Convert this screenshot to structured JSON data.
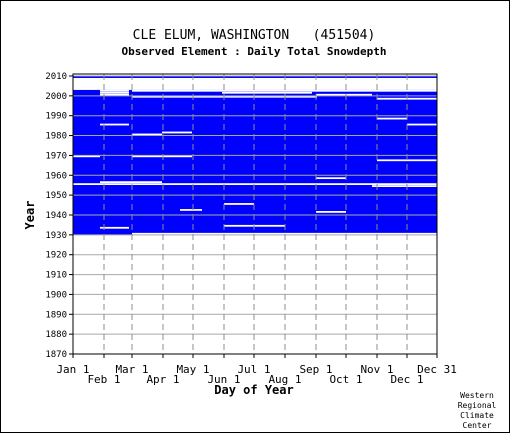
{
  "title": "CLE ELUM, WASHINGTON   (451504)",
  "subtitle": "Observed Element : Daily Total Snowdepth",
  "credit": [
    "Western",
    "Regional",
    "Climate",
    "Center"
  ],
  "chart_data": {
    "type": "heatmap",
    "title": "CLE ELUM, WASHINGTON   (451504)",
    "subtitle": "Observed Element : Daily Total Snowdepth",
    "xlabel": "Day of Year",
    "ylabel": "Year",
    "xlim": [
      1,
      365
    ],
    "ylim": [
      1870,
      2011
    ],
    "grid": true,
    "y_ticks": [
      1870,
      1880,
      1890,
      1900,
      1910,
      1920,
      1930,
      1940,
      1950,
      1960,
      1970,
      1980,
      1990,
      2000,
      2010
    ],
    "x_ticks_upper": [
      {
        "label": "Jan 1",
        "day": 1
      },
      {
        "label": "Mar 1",
        "day": 60
      },
      {
        "label": "May 1",
        "day": 121
      },
      {
        "label": "Jul 1",
        "day": 182
      },
      {
        "label": "Sep 1",
        "day": 244
      },
      {
        "label": "Nov 1",
        "day": 305
      },
      {
        "label": "Dec 31",
        "day": 365
      }
    ],
    "x_ticks_lower": [
      {
        "label": "Feb 1",
        "day": 32
      },
      {
        "label": "Apr 1",
        "day": 91
      },
      {
        "label": "Jun 1",
        "day": 152
      },
      {
        "label": "Aug 1",
        "day": 213
      },
      {
        "label": "Oct 1",
        "day": 274
      },
      {
        "label": "Dec 1",
        "day": 335
      }
    ],
    "fill_color": "#0000ff",
    "missing_color": "#ffffff",
    "data_blocks": [
      {
        "year_start": 1930,
        "year_end": 2002,
        "day_start": 1,
        "day_end": 365,
        "status": "observed"
      },
      {
        "year_start": 2009,
        "year_end": 2010,
        "day_start": 1,
        "day_end": 365,
        "status": "observed"
      }
    ],
    "missing_segments": [
      {
        "year": 2010,
        "day_start": 1,
        "day_end": 365
      },
      {
        "year": 2008,
        "day_start": 230,
        "day_end": 365
      },
      {
        "year": 2003,
        "day_start": 1,
        "day_end": 365
      },
      {
        "year": 2002,
        "day_start": 28,
        "day_end": 57
      },
      {
        "year": 2002,
        "day_start": 60,
        "day_end": 365
      },
      {
        "year": 2001,
        "day_start": 28,
        "day_end": 57
      },
      {
        "year": 2001,
        "day_start": 150,
        "day_end": 240
      },
      {
        "year": 2000,
        "day_start": 28,
        "day_end": 57
      },
      {
        "year": 2000,
        "day_start": 244,
        "day_end": 300
      },
      {
        "year": 1999,
        "day_start": 60,
        "day_end": 245
      },
      {
        "year": 1998,
        "day_start": 305,
        "day_end": 365
      },
      {
        "year": 1988,
        "day_start": 305,
        "day_end": 335
      },
      {
        "year": 1985,
        "day_start": 28,
        "day_end": 57
      },
      {
        "year": 1985,
        "day_start": 335,
        "day_end": 365
      },
      {
        "year": 1981,
        "day_start": 90,
        "day_end": 120
      },
      {
        "year": 1980,
        "day_start": 60,
        "day_end": 90
      },
      {
        "year": 1969,
        "day_start": 1,
        "day_end": 28
      },
      {
        "year": 1969,
        "day_start": 60,
        "day_end": 120
      },
      {
        "year": 1967,
        "day_start": 305,
        "day_end": 365
      },
      {
        "year": 1958,
        "day_start": 244,
        "day_end": 274
      },
      {
        "year": 1956,
        "day_start": 28,
        "day_end": 90
      },
      {
        "year": 1955,
        "day_start": 1,
        "day_end": 365
      },
      {
        "year": 1954,
        "day_start": 300,
        "day_end": 365
      },
      {
        "year": 1945,
        "day_start": 152,
        "day_end": 182
      },
      {
        "year": 1942,
        "day_start": 108,
        "day_end": 130
      },
      {
        "year": 1941,
        "day_start": 244,
        "day_end": 274
      },
      {
        "year": 1934,
        "day_start": 152,
        "day_end": 213
      },
      {
        "year": 1933,
        "day_start": 28,
        "day_end": 57
      },
      {
        "year": 1930,
        "day_start": 60,
        "day_end": 365
      }
    ]
  }
}
